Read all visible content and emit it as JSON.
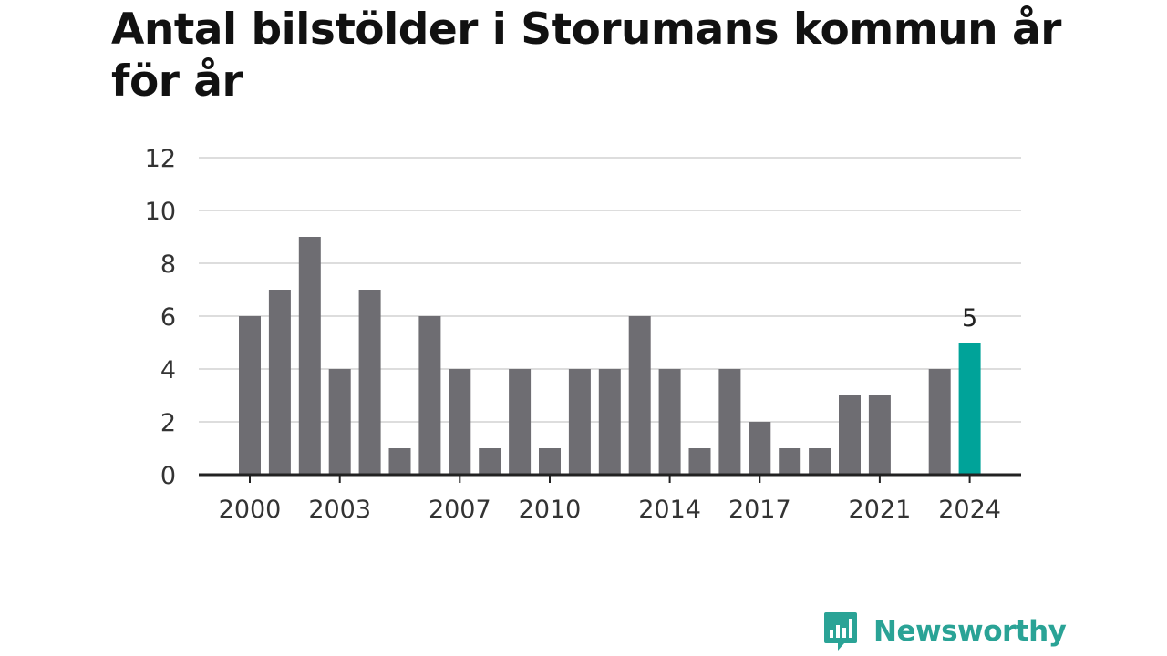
{
  "title": "Antal bilstölder i Storumans kommun år för år",
  "brand": {
    "name": "Newsworthy",
    "icon": "bar-chart-speech-bubble-icon",
    "color": "#2aa396"
  },
  "chart_data": {
    "type": "bar",
    "categories": [
      2000,
      2001,
      2002,
      2003,
      2004,
      2005,
      2006,
      2007,
      2008,
      2009,
      2010,
      2011,
      2012,
      2013,
      2014,
      2015,
      2016,
      2017,
      2018,
      2019,
      2020,
      2021,
      2022,
      2023,
      2024
    ],
    "values": [
      6,
      7,
      9,
      4,
      7,
      1,
      6,
      4,
      1,
      4,
      1,
      4,
      4,
      6,
      4,
      1,
      4,
      2,
      1,
      1,
      3,
      3,
      0,
      4,
      5
    ],
    "x_tick_labels": [
      "2000",
      "2003",
      "2007",
      "2010",
      "2014",
      "2017",
      "2021",
      "2024"
    ],
    "y_ticks": [
      0,
      2,
      4,
      6,
      8,
      10,
      12
    ],
    "ylim": [
      0,
      12
    ],
    "grid": true,
    "highlight": {
      "category": 2024,
      "label": "5"
    },
    "colors": {
      "bar": "#6e6d72",
      "highlight": "#00a399",
      "grid": "#dddddd",
      "axis": "#222222"
    },
    "xlabel": "",
    "ylabel": ""
  }
}
